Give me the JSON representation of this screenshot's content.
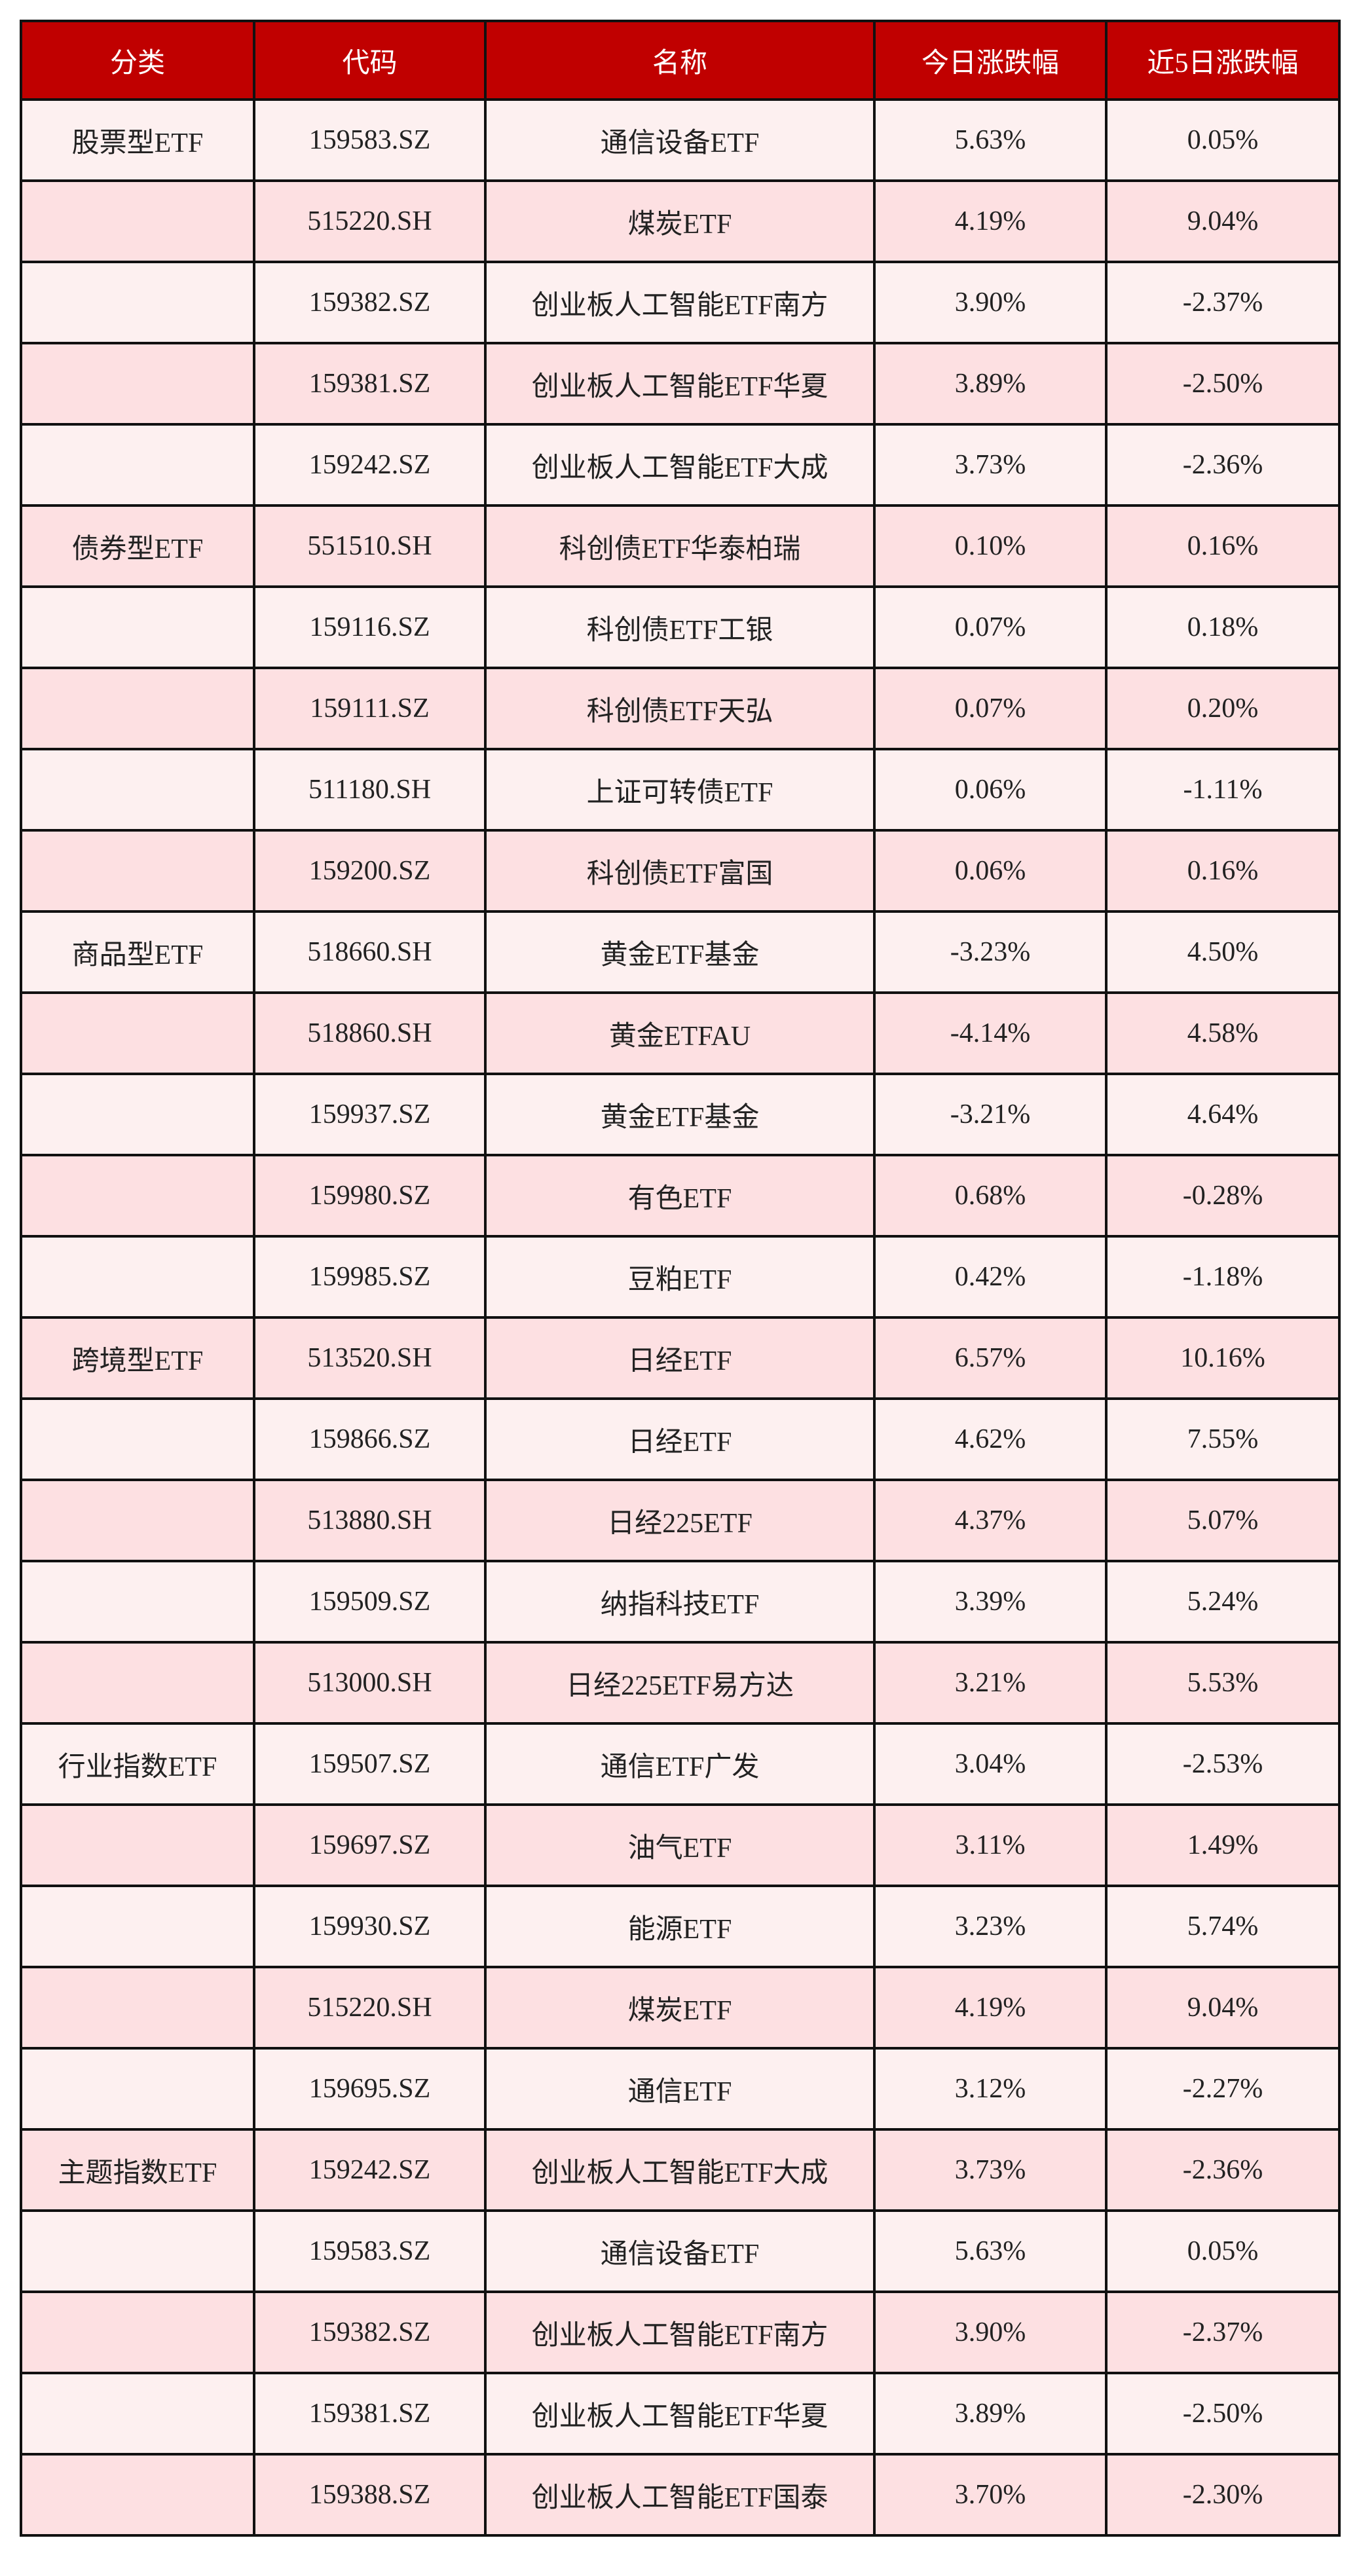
{
  "header": [
    "分类",
    "代码",
    "名称",
    "今日涨跌幅",
    "近5日涨跌幅"
  ],
  "colors": {
    "header_bg": "#c00000",
    "row_light": "#fdf0f0",
    "row_dark": "#fde0e2"
  },
  "rows": [
    [
      "股票型ETF",
      "159583.SZ",
      "通信设备ETF",
      "5.63%",
      "0.05%"
    ],
    [
      "",
      "515220.SH",
      "煤炭ETF",
      "4.19%",
      "9.04%"
    ],
    [
      "",
      "159382.SZ",
      "创业板人工智能ETF南方",
      "3.90%",
      "-2.37%"
    ],
    [
      "",
      "159381.SZ",
      "创业板人工智能ETF华夏",
      "3.89%",
      "-2.50%"
    ],
    [
      "",
      "159242.SZ",
      "创业板人工智能ETF大成",
      "3.73%",
      "-2.36%"
    ],
    [
      "债券型ETF",
      "551510.SH",
      "科创债ETF华泰柏瑞",
      "0.10%",
      "0.16%"
    ],
    [
      "",
      "159116.SZ",
      "科创债ETF工银",
      "0.07%",
      "0.18%"
    ],
    [
      "",
      "159111.SZ",
      "科创债ETF天弘",
      "0.07%",
      "0.20%"
    ],
    [
      "",
      "511180.SH",
      "上证可转债ETF",
      "0.06%",
      "-1.11%"
    ],
    [
      "",
      "159200.SZ",
      "科创债ETF富国",
      "0.06%",
      "0.16%"
    ],
    [
      "商品型ETF",
      "518660.SH",
      "黄金ETF基金",
      "-3.23%",
      "4.50%"
    ],
    [
      "",
      "518860.SH",
      "黄金ETFAU",
      "-4.14%",
      "4.58%"
    ],
    [
      "",
      "159937.SZ",
      "黄金ETF基金",
      "-3.21%",
      "4.64%"
    ],
    [
      "",
      "159980.SZ",
      "有色ETF",
      "0.68%",
      "-0.28%"
    ],
    [
      "",
      "159985.SZ",
      "豆粕ETF",
      "0.42%",
      "-1.18%"
    ],
    [
      "跨境型ETF",
      "513520.SH",
      "日经ETF",
      "6.57%",
      "10.16%"
    ],
    [
      "",
      "159866.SZ",
      "日经ETF",
      "4.62%",
      "7.55%"
    ],
    [
      "",
      "513880.SH",
      "日经225ETF",
      "4.37%",
      "5.07%"
    ],
    [
      "",
      "159509.SZ",
      "纳指科技ETF",
      "3.39%",
      "5.24%"
    ],
    [
      "",
      "513000.SH",
      "日经225ETF易方达",
      "3.21%",
      "5.53%"
    ],
    [
      "行业指数ETF",
      "159507.SZ",
      "通信ETF广发",
      "3.04%",
      "-2.53%"
    ],
    [
      "",
      "159697.SZ",
      "油气ETF",
      "3.11%",
      "1.49%"
    ],
    [
      "",
      "159930.SZ",
      "能源ETF",
      "3.23%",
      "5.74%"
    ],
    [
      "",
      "515220.SH",
      "煤炭ETF",
      "4.19%",
      "9.04%"
    ],
    [
      "",
      "159695.SZ",
      "通信ETF",
      "3.12%",
      "-2.27%"
    ],
    [
      "主题指数ETF",
      "159242.SZ",
      "创业板人工智能ETF大成",
      "3.73%",
      "-2.36%"
    ],
    [
      "",
      "159583.SZ",
      "通信设备ETF",
      "5.63%",
      "0.05%"
    ],
    [
      "",
      "159382.SZ",
      "创业板人工智能ETF南方",
      "3.90%",
      "-2.37%"
    ],
    [
      "",
      "159381.SZ",
      "创业板人工智能ETF华夏",
      "3.89%",
      "-2.50%"
    ],
    [
      "",
      "159388.SZ",
      "创业板人工智能ETF国泰",
      "3.70%",
      "-2.30%"
    ]
  ]
}
